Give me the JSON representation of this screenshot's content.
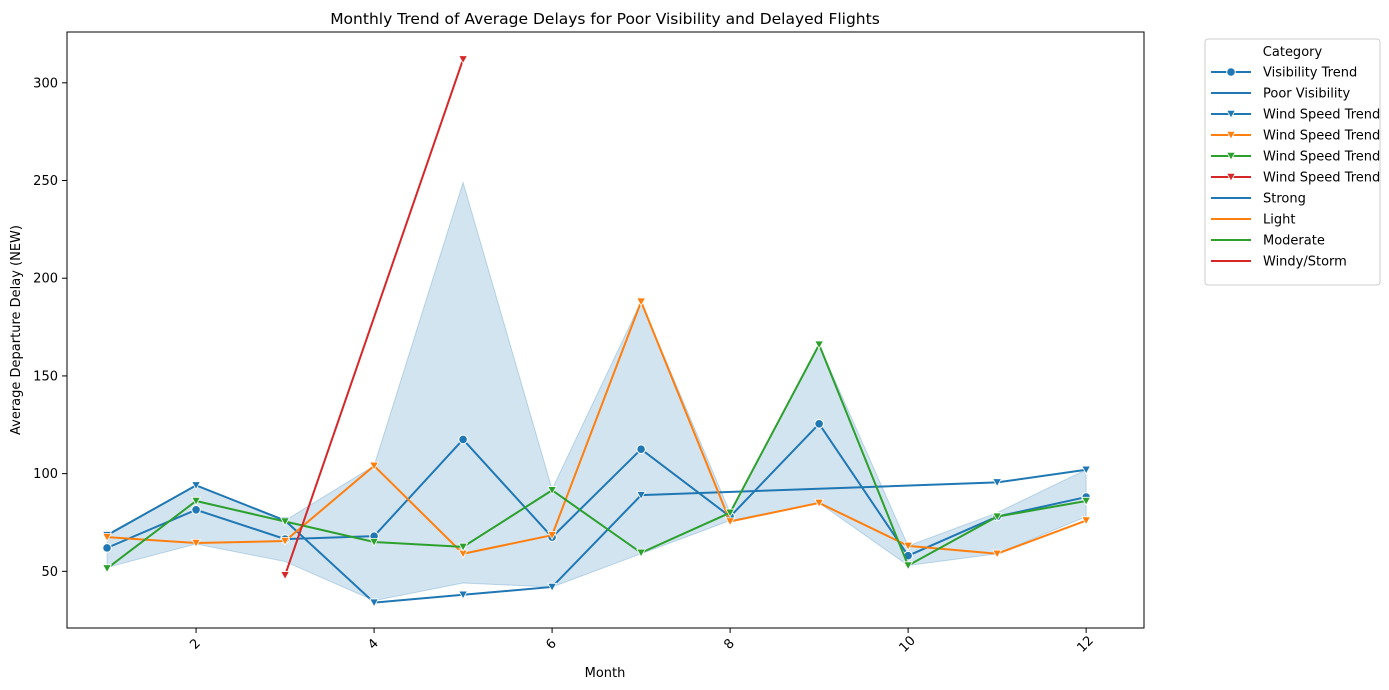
{
  "chart_data": {
    "type": "line",
    "title": "Monthly Trend of Average Delays for Poor Visibility and Delayed Flights",
    "xlabel": "Month",
    "ylabel": "Average Departure Delay (NEW)",
    "xlim": [
      0.55,
      12.65
    ],
    "ylim": [
      21,
      326
    ],
    "x_ticks": [
      2,
      4,
      6,
      8,
      10,
      12
    ],
    "y_ticks": [
      50,
      100,
      150,
      200,
      250,
      300
    ],
    "grid": false,
    "legend": {
      "title": "Category",
      "placement": "outside-right-top",
      "entries": [
        {
          "label": "Visibility Trend",
          "color": "#1f77b4",
          "marker": "circle"
        },
        {
          "label": "Poor Visibility",
          "color": "#1f77b4",
          "marker": "none"
        },
        {
          "label": "Wind Speed Trend",
          "color": "#1f77b4",
          "marker": "triangle-down"
        },
        {
          "label": "Wind Speed Trend",
          "color": "#ff7f0e",
          "marker": "triangle-down"
        },
        {
          "label": "Wind Speed Trend",
          "color": "#2ca02c",
          "marker": "triangle-down"
        },
        {
          "label": "Wind Speed Trend",
          "color": "#d62728",
          "marker": "triangle-down"
        },
        {
          "label": "Strong",
          "color": "#1f77b4",
          "marker": "none"
        },
        {
          "label": "Light",
          "color": "#ff7f0e",
          "marker": "none"
        },
        {
          "label": "Moderate",
          "color": "#2ca02c",
          "marker": "none"
        },
        {
          "label": "Windy/Storm",
          "color": "#d62728",
          "marker": "none"
        }
      ]
    },
    "band": {
      "color": "#1f77b4",
      "x": [
        1,
        2,
        3,
        4,
        5,
        6,
        7,
        8,
        9,
        10,
        11,
        12
      ],
      "lower": [
        52,
        64,
        55,
        35,
        44,
        42,
        59,
        76,
        85,
        53,
        59,
        78
      ],
      "upper": [
        68,
        94,
        76,
        104,
        249,
        92,
        188,
        80,
        166,
        63,
        80,
        102
      ]
    },
    "series": [
      {
        "color": "#1f77b4",
        "marker": "circle",
        "x": [
          1,
          2,
          3,
          4,
          5,
          6,
          7,
          8,
          9,
          10,
          11,
          12
        ],
        "values": [
          62,
          81.5,
          66.5,
          68,
          117.5,
          67.5,
          112.5,
          78,
          125.5,
          58,
          78,
          88
        ]
      },
      {
        "color": "#1f77b4",
        "marker": "triangle-down",
        "x": [
          1,
          2,
          3,
          4,
          5,
          6,
          7,
          11,
          12
        ],
        "values": [
          68.5,
          94,
          76,
          34,
          38,
          42,
          89,
          95.5,
          102
        ]
      },
      {
        "color": "#ff7f0e",
        "marker": "triangle-down",
        "x": [
          1,
          2,
          3,
          4,
          5,
          6,
          7,
          8,
          9,
          10,
          11,
          12
        ],
        "values": [
          67.5,
          64.5,
          65.5,
          104,
          59,
          68.5,
          188,
          75.5,
          85,
          63,
          59,
          76
        ]
      },
      {
        "color": "#2ca02c",
        "marker": "triangle-down",
        "x": [
          1,
          2,
          3,
          4,
          5,
          6,
          7,
          8,
          9,
          10,
          11,
          12
        ],
        "values": [
          51.5,
          86,
          75.5,
          65,
          62.5,
          91.5,
          59.5,
          80,
          166,
          53,
          78,
          86
        ]
      },
      {
        "color": "#d62728",
        "marker": "triangle-down",
        "x": [
          3,
          5
        ],
        "values": [
          48,
          312
        ]
      }
    ]
  }
}
